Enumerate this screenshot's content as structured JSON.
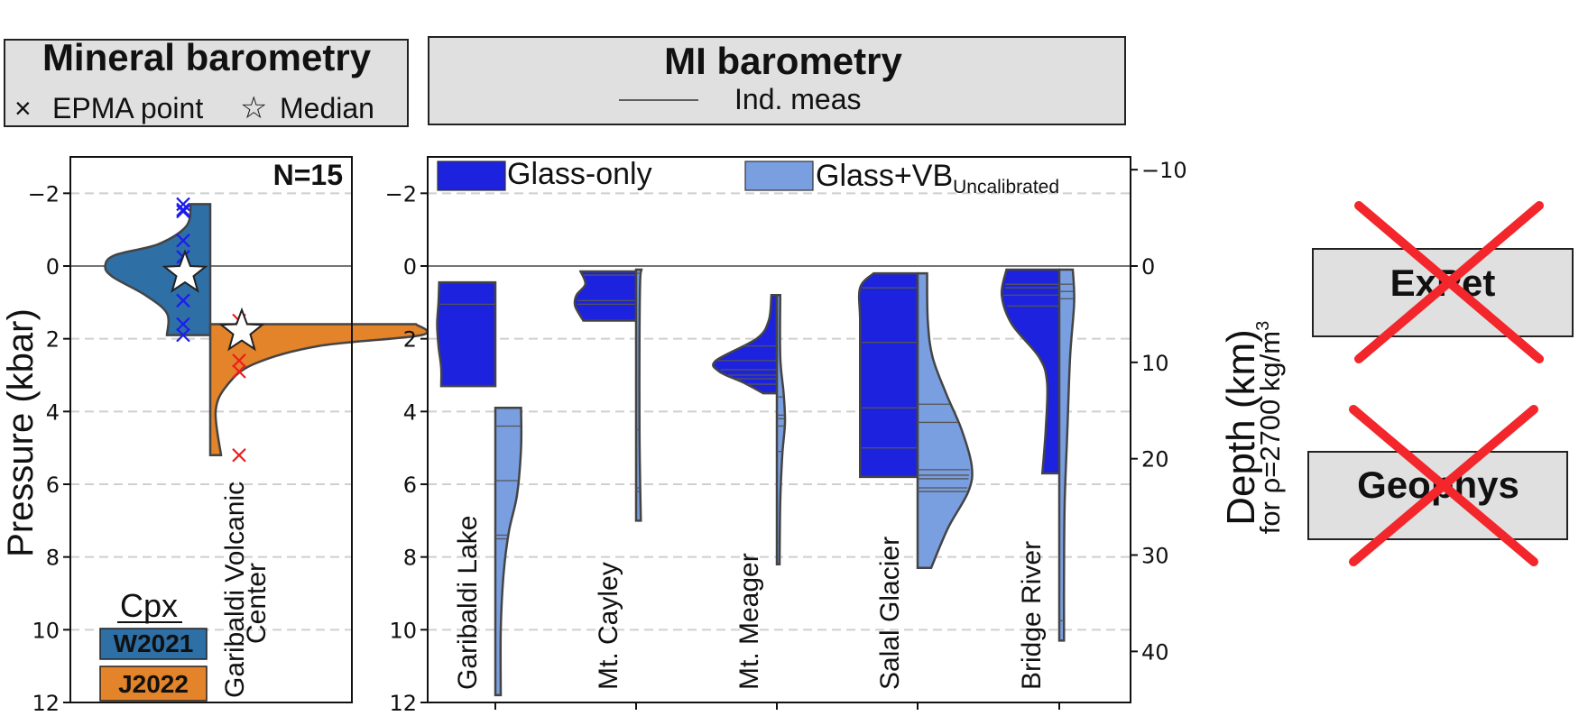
{
  "panels": {
    "mineral": {
      "title": "Mineral barometry",
      "legend_epma": "EPMA point",
      "legend_median": "Median",
      "n_label": "N=15"
    },
    "mi": {
      "title": "MI barometry",
      "legend_ind": "Ind. meas"
    },
    "expet": "ExPet",
    "geophys": "Geophys"
  },
  "colors": {
    "w2021": "#2e6fa6",
    "j2022": "#e3832a",
    "glass_only": "#1c22de",
    "glass_vb": "#7a9fe0",
    "cross_red": "#f2262b",
    "w2021_points": "#1c1cf0",
    "j2022_points": "#ee1c1c"
  },
  "chart_data": [
    {
      "type": "violin",
      "ylabel": "Pressure (kbar)",
      "ylim": [
        12,
        -3
      ],
      "yticks": [
        -2,
        0,
        2,
        4,
        6,
        8,
        10,
        12
      ],
      "ytick_labels": [
        "−2",
        "0",
        "2",
        "4",
        "6",
        "8",
        "10",
        "12"
      ],
      "grid": "horizontal dashed",
      "category": "Garibaldi Volcanic Center",
      "category_lines": [
        "Garibaldi Volcanic",
        "Center"
      ],
      "legend_title": "Cpx",
      "legend": [
        "W2021",
        "J2022"
      ],
      "series": [
        {
          "name": "W2021",
          "side": "left",
          "range": [
            -1.7,
            1.9
          ],
          "profile": [
            [
              -1.7,
              0.18
            ],
            [
              -1.1,
              0.22
            ],
            [
              -0.6,
              0.48
            ],
            [
              -0.3,
              0.88
            ],
            [
              0.0,
              0.97
            ],
            [
              0.3,
              0.9
            ],
            [
              0.8,
              0.6
            ],
            [
              1.3,
              0.4
            ],
            [
              1.9,
              0.4
            ]
          ],
          "points": [
            -1.7,
            -1.55,
            -1.5,
            -0.7,
            -0.25,
            0.95,
            1.6,
            1.9
          ],
          "median": 0.2
        },
        {
          "name": "J2022",
          "side": "right",
          "range": [
            1.6,
            5.2
          ],
          "profile": [
            [
              1.6,
              1.9
            ],
            [
              1.9,
              1.95
            ],
            [
              2.2,
              1.0
            ],
            [
              2.7,
              0.4
            ],
            [
              3.3,
              0.15
            ],
            [
              4.0,
              0.05
            ],
            [
              5.2,
              0.1
            ]
          ],
          "points": [
            1.5,
            2.6,
            2.9,
            5.2
          ],
          "median": 1.8
        }
      ]
    },
    {
      "type": "violin",
      "ylabel": "",
      "ylim": [
        12,
        -3
      ],
      "yticks": [
        -2,
        0,
        2,
        4,
        6,
        8,
        10,
        12
      ],
      "ytick_labels": [
        "−2",
        "0",
        "2",
        "4",
        "6",
        "8",
        "10",
        "12"
      ],
      "y2label": "Depth (km)",
      "y2sublabel": "for ρ=2700 kg/m",
      "y2sublabel_sup": "3",
      "y2ticks_km": [
        -10,
        0,
        10,
        20,
        30,
        40
      ],
      "y2tick_labels": [
        "−10",
        "0",
        "10",
        "20",
        "30",
        "40"
      ],
      "grid": "horizontal dashed",
      "legend": [
        {
          "label": "Glass-only",
          "sub": ""
        },
        {
          "label": "Glass+VB",
          "sub": "Uncalibrated"
        }
      ],
      "categories": [
        "Garibaldi Lake",
        "Mt. Cayley",
        "Mt. Meager",
        "Salal Glacier",
        "Bridge River"
      ],
      "series": [
        {
          "name": "Glass-only",
          "side": "left",
          "violins": [
            {
              "category": "Garibaldi Lake",
              "range": [
                0.45,
                3.3
              ],
              "profile": [
                [
                  0.45,
                  0.83
                ],
                [
                  1.0,
                  0.84
                ],
                [
                  1.6,
                  0.86
                ],
                [
                  2.2,
                  0.84
                ],
                [
                  2.8,
                  0.8
                ],
                [
                  3.3,
                  0.8
                ]
              ],
              "measurements": [
                1.05
              ]
            },
            {
              "category": "Mt. Cayley",
              "range": [
                0.15,
                1.5
              ],
              "profile": [
                [
                  0.15,
                  0.82
                ],
                [
                  0.5,
                  0.75
                ],
                [
                  0.8,
                  0.88
                ],
                [
                  1.1,
                  0.9
                ],
                [
                  1.5,
                  0.78
                ]
              ],
              "measurements": [
                0.25,
                0.95,
                1.05
              ]
            },
            {
              "category": "Mt. Meager",
              "range": [
                0.8,
                3.5
              ],
              "profile": [
                [
                  0.8,
                  0.08
                ],
                [
                  1.5,
                  0.12
                ],
                [
                  2.0,
                  0.3
                ],
                [
                  2.6,
                  0.9
                ],
                [
                  2.9,
                  0.85
                ],
                [
                  3.2,
                  0.5
                ],
                [
                  3.5,
                  0.2
                ]
              ],
              "measurements": [
                2.2,
                2.6,
                2.85,
                3.0,
                3.1,
                3.25
              ]
            },
            {
              "category": "Salal Glacier",
              "range": [
                0.2,
                5.8
              ],
              "profile": [
                [
                  0.2,
                  0.65
                ],
                [
                  0.6,
                  0.85
                ],
                [
                  1.5,
                  0.85
                ],
                [
                  3.0,
                  0.85
                ],
                [
                  4.5,
                  0.85
                ],
                [
                  5.8,
                  0.85
                ]
              ],
              "measurements": [
                0.6,
                2.1,
                3.9,
                5.0
              ]
            },
            {
              "category": "Bridge River",
              "range": [
                0.1,
                5.7
              ],
              "profile": [
                [
                  0.1,
                  0.78
                ],
                [
                  0.8,
                  0.85
                ],
                [
                  1.6,
                  0.7
                ],
                [
                  2.5,
                  0.3
                ],
                [
                  3.2,
                  0.18
                ],
                [
                  4.5,
                  0.2
                ],
                [
                  5.7,
                  0.25
                ]
              ],
              "measurements": [
                0.5,
                0.6,
                0.8,
                1.1
              ]
            }
          ]
        },
        {
          "name": "Glass+VB",
          "side": "right",
          "violins": [
            {
              "category": "Garibaldi Lake",
              "range": [
                3.9,
                11.8
              ],
              "profile": [
                [
                  3.9,
                  0.38
                ],
                [
                  5.0,
                  0.38
                ],
                [
                  6.3,
                  0.32
                ],
                [
                  7.3,
                  0.2
                ],
                [
                  8.5,
                  0.12
                ],
                [
                  10.0,
                  0.08
                ],
                [
                  11.8,
                  0.08
                ]
              ],
              "measurements": [
                4.4,
                5.9,
                7.4,
                7.5
              ]
            },
            {
              "category": "Mt. Cayley",
              "range": [
                0.1,
                7.0
              ],
              "profile": [
                [
                  0.1,
                  0.08
                ],
                [
                  0.4,
                  0.06
                ],
                [
                  2.0,
                  0.05
                ],
                [
                  4.5,
                  0.05
                ],
                [
                  6.0,
                  0.06
                ],
                [
                  7.0,
                  0.07
                ]
              ],
              "measurements": [
                0.2,
                4.5,
                6.1,
                6.2
              ]
            },
            {
              "category": "Mt. Meager",
              "range": [
                0.8,
                8.2
              ],
              "profile": [
                [
                  0.8,
                  0.05
                ],
                [
                  2.5,
                  0.05
                ],
                [
                  3.5,
                  0.1
                ],
                [
                  4.3,
                  0.12
                ],
                [
                  5.2,
                  0.08
                ],
                [
                  6.5,
                  0.05
                ],
                [
                  8.2,
                  0.04
                ]
              ],
              "measurements": [
                3.6,
                4.1,
                4.2,
                4.4,
                5.1,
                7.6
              ]
            },
            {
              "category": "Salal Glacier",
              "range": [
                0.2,
                8.3
              ],
              "profile": [
                [
                  0.2,
                  0.14
                ],
                [
                  1.5,
                  0.15
                ],
                [
                  2.5,
                  0.22
                ],
                [
                  3.5,
                  0.42
                ],
                [
                  4.5,
                  0.65
                ],
                [
                  5.5,
                  0.8
                ],
                [
                  6.2,
                  0.75
                ],
                [
                  7.2,
                  0.45
                ],
                [
                  8.3,
                  0.2
                ]
              ],
              "measurements": [
                3.8,
                4.3,
                5.6,
                5.75,
                5.85,
                6.1,
                6.2
              ]
            },
            {
              "category": "Bridge River",
              "range": [
                0.1,
                10.3
              ],
              "profile": [
                [
                  0.1,
                  0.2
                ],
                [
                  1.0,
                  0.22
                ],
                [
                  2.5,
                  0.16
                ],
                [
                  4.5,
                  0.12
                ],
                [
                  6.5,
                  0.08
                ],
                [
                  8.5,
                  0.07
                ],
                [
                  10.3,
                  0.07
                ]
              ],
              "measurements": [
                0.5,
                0.7,
                0.9,
                9.75
              ]
            }
          ]
        }
      ]
    }
  ]
}
